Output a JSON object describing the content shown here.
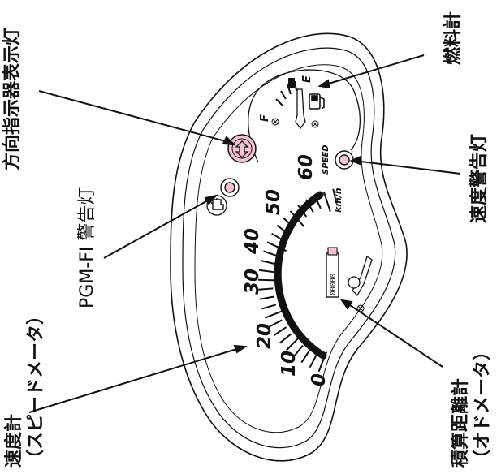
{
  "labels": {
    "turn_signal": "方向指示器表示灯",
    "fuel_gauge": "燃料計",
    "speed_warning": "速度警告灯",
    "pgmfi_warning": "PGM-FI 警告灯",
    "odometer_line1": "積算距離計",
    "odometer_line2": "（オドメータ）",
    "speedometer_line1": "速度計",
    "speedometer_line2": "（スピードメータ）"
  },
  "dial": {
    "speed_numbers": [
      "0",
      "10",
      "20",
      "30",
      "40",
      "50",
      "60"
    ],
    "unit": "km/h",
    "speed_text": "SPEED",
    "fuel_full": "F",
    "fuel_empty": "E",
    "odometer_digits": "00000"
  },
  "colors": {
    "line": "#111111",
    "turn_signal_fill": "#f4c2d0",
    "warning_fill": "#f4c2d0"
  }
}
